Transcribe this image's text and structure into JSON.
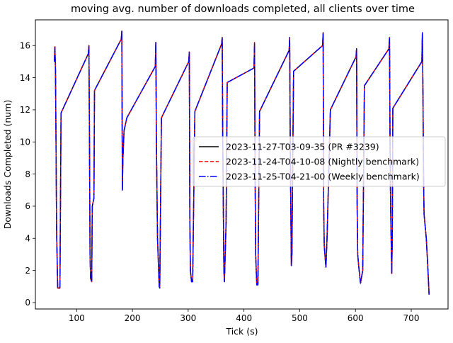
{
  "chart_data": {
    "type": "line",
    "title": "moving avg. number of downloads completed, all clients over time",
    "xlabel": "Tick (s)",
    "ylabel": "Downloads Completed (num)",
    "xlim": [
      26,
      766
    ],
    "ylim": [
      -0.4,
      17.6
    ],
    "xticks": [
      100,
      200,
      300,
      400,
      500,
      600,
      700
    ],
    "yticks": [
      0,
      2,
      4,
      6,
      8,
      10,
      12,
      14,
      16
    ],
    "grid": false,
    "legend_position": "center-right",
    "series": [
      {
        "name": "2023-11-27-T03-09-35 (PR #3239)",
        "color": "#000000",
        "dash": "solid",
        "points": [
          [
            60,
            15.0
          ],
          [
            61,
            15.9
          ],
          [
            62,
            14.5
          ],
          [
            63,
            10.0
          ],
          [
            64,
            4.5
          ],
          [
            66,
            0.9
          ],
          [
            70,
            0.9
          ],
          [
            72,
            11.8
          ],
          [
            121,
            15.5
          ],
          [
            122,
            16.0
          ],
          [
            123,
            10.0
          ],
          [
            124,
            3.0
          ],
          [
            125,
            1.5
          ],
          [
            127,
            1.3
          ],
          [
            128,
            6.0
          ],
          [
            131,
            6.5
          ],
          [
            132,
            13.2
          ],
          [
            180,
            16.4
          ],
          [
            181,
            16.9
          ],
          [
            182,
            7.0
          ],
          [
            183,
            9.0
          ],
          [
            185,
            10.7
          ],
          [
            190,
            11.5
          ],
          [
            241,
            14.7
          ],
          [
            242,
            16.2
          ],
          [
            243,
            10.0
          ],
          [
            245,
            4.0
          ],
          [
            248,
            1.0
          ],
          [
            249,
            0.9
          ],
          [
            252,
            11.5
          ],
          [
            301,
            15.0
          ],
          [
            302,
            15.6
          ],
          [
            303,
            5.0
          ],
          [
            304,
            2.0
          ],
          [
            306,
            1.3
          ],
          [
            308,
            1.3
          ],
          [
            312,
            11.9
          ],
          [
            360,
            16.1
          ],
          [
            361,
            16.5
          ],
          [
            362,
            10.0
          ],
          [
            363,
            6.0
          ],
          [
            364,
            2.0
          ],
          [
            365,
            1.3
          ],
          [
            368,
            5.0
          ],
          [
            370,
            13.7
          ],
          [
            418,
            14.6
          ],
          [
            419,
            16.1
          ],
          [
            420,
            8.0
          ],
          [
            421,
            3.0
          ],
          [
            423,
            1.1
          ],
          [
            425,
            1.1
          ],
          [
            428,
            11.9
          ],
          [
            481,
            15.7
          ],
          [
            482,
            16.5
          ],
          [
            483,
            10.0
          ],
          [
            484,
            6.0
          ],
          [
            485,
            2.3
          ],
          [
            486,
            3.0
          ],
          [
            489,
            14.4
          ],
          [
            541,
            16.0
          ],
          [
            542,
            16.8
          ],
          [
            543,
            6.0
          ],
          [
            544,
            3.5
          ],
          [
            547,
            2.2
          ],
          [
            549,
            4.0
          ],
          [
            555,
            12.0
          ],
          [
            601,
            15.3
          ],
          [
            602,
            15.8
          ],
          [
            603,
            6.0
          ],
          [
            604,
            3.0
          ],
          [
            606,
            2.2
          ],
          [
            609,
            1.2
          ],
          [
            613,
            2.0
          ],
          [
            616,
            13.5
          ],
          [
            660,
            15.8
          ],
          [
            661,
            16.5
          ],
          [
            662,
            10.0
          ],
          [
            663,
            6.0
          ],
          [
            665,
            1.8
          ],
          [
            666,
            4.0
          ],
          [
            667,
            12.1
          ],
          [
            719,
            15.0
          ],
          [
            720,
            16.8
          ],
          [
            721,
            13.0
          ],
          [
            722,
            8.0
          ],
          [
            723,
            5.5
          ],
          [
            727,
            4.0
          ],
          [
            730,
            2.0
          ],
          [
            732,
            0.5
          ]
        ]
      },
      {
        "name": "2023-11-24-T04-10-08 (Nightly benchmark)",
        "color": "#ff0000",
        "dash": "dashed",
        "points": [
          [
            60,
            15.0
          ],
          [
            61,
            16.0
          ],
          [
            62,
            14.4
          ],
          [
            63,
            10.0
          ],
          [
            64,
            4.5
          ],
          [
            66,
            0.9
          ],
          [
            70,
            0.9
          ],
          [
            72,
            11.8
          ],
          [
            121,
            15.5
          ],
          [
            122,
            16.0
          ],
          [
            123,
            10.0
          ],
          [
            124,
            3.0
          ],
          [
            125,
            1.5
          ],
          [
            127,
            1.3
          ],
          [
            128,
            6.0
          ],
          [
            131,
            6.5
          ],
          [
            132,
            13.2
          ],
          [
            180,
            16.4
          ],
          [
            181,
            16.8
          ],
          [
            182,
            7.2
          ],
          [
            183,
            9.0
          ],
          [
            185,
            10.7
          ],
          [
            190,
            11.5
          ],
          [
            241,
            14.7
          ],
          [
            242,
            16.1
          ],
          [
            243,
            10.0
          ],
          [
            245,
            4.0
          ],
          [
            248,
            1.0
          ],
          [
            249,
            0.9
          ],
          [
            252,
            11.5
          ],
          [
            301,
            15.0
          ],
          [
            302,
            15.6
          ],
          [
            303,
            5.0
          ],
          [
            304,
            2.0
          ],
          [
            306,
            1.3
          ],
          [
            308,
            1.3
          ],
          [
            312,
            11.9
          ],
          [
            360,
            16.1
          ],
          [
            361,
            16.5
          ],
          [
            362,
            10.0
          ],
          [
            363,
            6.0
          ],
          [
            364,
            2.0
          ],
          [
            365,
            1.3
          ],
          [
            368,
            5.0
          ],
          [
            370,
            13.7
          ],
          [
            418,
            14.6
          ],
          [
            419,
            16.2
          ],
          [
            420,
            8.0
          ],
          [
            421,
            3.0
          ],
          [
            423,
            1.1
          ],
          [
            425,
            1.1
          ],
          [
            428,
            11.9
          ],
          [
            481,
            15.7
          ],
          [
            482,
            16.5
          ],
          [
            483,
            10.0
          ],
          [
            484,
            6.0
          ],
          [
            485,
            2.3
          ],
          [
            486,
            3.0
          ],
          [
            489,
            14.4
          ],
          [
            541,
            16.0
          ],
          [
            542,
            16.8
          ],
          [
            543,
            6.0
          ],
          [
            544,
            3.5
          ],
          [
            547,
            2.2
          ],
          [
            549,
            4.0
          ],
          [
            555,
            12.0
          ],
          [
            601,
            15.3
          ],
          [
            602,
            15.8
          ],
          [
            603,
            6.0
          ],
          [
            604,
            3.0
          ],
          [
            606,
            2.2
          ],
          [
            609,
            1.2
          ],
          [
            613,
            2.0
          ],
          [
            616,
            13.5
          ],
          [
            660,
            15.8
          ],
          [
            661,
            16.5
          ],
          [
            662,
            10.0
          ],
          [
            663,
            6.0
          ],
          [
            665,
            1.8
          ],
          [
            666,
            4.0
          ],
          [
            667,
            12.1
          ],
          [
            719,
            15.0
          ],
          [
            720,
            16.8
          ],
          [
            721,
            13.0
          ],
          [
            722,
            8.0
          ],
          [
            723,
            5.5
          ],
          [
            727,
            4.0
          ],
          [
            730,
            2.0
          ],
          [
            732,
            0.5
          ]
        ]
      },
      {
        "name": "2023-11-25-T04-21-00 (Weekly benchmark)",
        "color": "#0000ff",
        "dash": "dashdot",
        "points": [
          [
            60,
            15.0
          ],
          [
            61,
            15.9
          ],
          [
            62,
            14.5
          ],
          [
            63,
            10.0
          ],
          [
            64,
            4.5
          ],
          [
            66,
            0.9
          ],
          [
            70,
            0.9
          ],
          [
            72,
            11.8
          ],
          [
            121,
            15.5
          ],
          [
            122,
            16.0
          ],
          [
            123,
            10.0
          ],
          [
            124,
            3.0
          ],
          [
            125,
            1.5
          ],
          [
            127,
            1.3
          ],
          [
            128,
            6.0
          ],
          [
            131,
            6.5
          ],
          [
            132,
            13.2
          ],
          [
            180,
            16.4
          ],
          [
            181,
            16.9
          ],
          [
            182,
            7.0
          ],
          [
            183,
            9.0
          ],
          [
            185,
            10.7
          ],
          [
            190,
            11.5
          ],
          [
            241,
            14.7
          ],
          [
            242,
            16.2
          ],
          [
            243,
            10.0
          ],
          [
            245,
            4.0
          ],
          [
            248,
            1.0
          ],
          [
            249,
            0.9
          ],
          [
            252,
            11.5
          ],
          [
            301,
            15.0
          ],
          [
            302,
            15.6
          ],
          [
            303,
            5.0
          ],
          [
            304,
            2.0
          ],
          [
            306,
            1.3
          ],
          [
            308,
            1.3
          ],
          [
            312,
            11.9
          ],
          [
            360,
            16.1
          ],
          [
            361,
            16.5
          ],
          [
            362,
            10.0
          ],
          [
            363,
            6.0
          ],
          [
            364,
            2.0
          ],
          [
            365,
            1.3
          ],
          [
            368,
            5.0
          ],
          [
            370,
            13.7
          ],
          [
            418,
            14.6
          ],
          [
            419,
            16.1
          ],
          [
            420,
            8.0
          ],
          [
            421,
            3.0
          ],
          [
            423,
            1.1
          ],
          [
            425,
            1.1
          ],
          [
            428,
            11.9
          ],
          [
            481,
            15.7
          ],
          [
            482,
            16.5
          ],
          [
            483,
            10.0
          ],
          [
            484,
            6.0
          ],
          [
            485,
            2.3
          ],
          [
            486,
            3.0
          ],
          [
            489,
            14.4
          ],
          [
            541,
            16.0
          ],
          [
            542,
            16.8
          ],
          [
            543,
            6.0
          ],
          [
            544,
            3.5
          ],
          [
            547,
            2.2
          ],
          [
            549,
            4.0
          ],
          [
            555,
            12.0
          ],
          [
            601,
            15.3
          ],
          [
            602,
            15.8
          ],
          [
            603,
            6.0
          ],
          [
            604,
            3.0
          ],
          [
            606,
            2.2
          ],
          [
            609,
            1.2
          ],
          [
            613,
            2.0
          ],
          [
            616,
            13.5
          ],
          [
            660,
            15.8
          ],
          [
            661,
            16.5
          ],
          [
            662,
            10.0
          ],
          [
            663,
            6.0
          ],
          [
            665,
            1.8
          ],
          [
            666,
            4.0
          ],
          [
            667,
            12.1
          ],
          [
            719,
            15.0
          ],
          [
            720,
            16.8
          ],
          [
            721,
            13.0
          ],
          [
            722,
            8.0
          ],
          [
            723,
            5.5
          ],
          [
            727,
            4.0
          ],
          [
            730,
            2.0
          ],
          [
            732,
            0.5
          ]
        ]
      }
    ]
  }
}
